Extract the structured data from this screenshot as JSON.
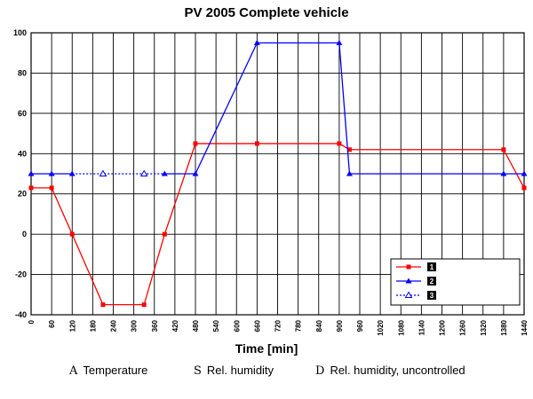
{
  "chart_data": {
    "type": "line",
    "title": "PV 2005 Complete vehicle",
    "xlabel": "Time [min]",
    "ylabel": "",
    "xlim": [
      0,
      1440
    ],
    "ylim": [
      -40,
      100
    ],
    "x_ticks": [
      0,
      60,
      120,
      180,
      240,
      300,
      360,
      420,
      480,
      540,
      600,
      660,
      720,
      780,
      840,
      900,
      960,
      1020,
      1080,
      1140,
      1200,
      1260,
      1320,
      1380,
      1440
    ],
    "y_ticks": [
      -40,
      -20,
      0,
      20,
      40,
      60,
      80,
      100
    ],
    "grid": true,
    "legend_position": "bottom-right",
    "series": [
      {
        "name": "1",
        "color": "#ff0000",
        "style": "solid",
        "marker": "square",
        "x": [
          0,
          60,
          120,
          210,
          330,
          390,
          480,
          660,
          900,
          930,
          1380,
          1440
        ],
        "y": [
          23,
          23,
          0,
          -35,
          -35,
          0,
          45,
          45,
          45,
          42,
          42,
          23
        ]
      },
      {
        "name": "2",
        "color": "#0000ff",
        "style": "solid",
        "marker": "triangle",
        "x": [
          0,
          60,
          120
        ],
        "y": [
          30,
          30,
          30
        ]
      },
      {
        "name": "",
        "color": "#0000ff",
        "style": "solid",
        "marker": "triangle",
        "x": [
          390,
          480,
          660,
          900,
          930,
          1380,
          1440
        ],
        "y": [
          30,
          30,
          95,
          95,
          30,
          30,
          30
        ]
      },
      {
        "name": "3",
        "color": "#0000ff",
        "style": "dotted",
        "marker": "open-triangle",
        "x": [
          120,
          210,
          330,
          390
        ],
        "y": [
          30,
          30,
          30,
          30
        ]
      }
    ],
    "legend_entries": [
      "1",
      "2",
      "3"
    ],
    "footer_legend": [
      {
        "letter": "A",
        "text": "Temperature"
      },
      {
        "letter": "S",
        "text": "Rel. humidity"
      },
      {
        "letter": "D",
        "text": "Rel. humidity, uncontrolled"
      }
    ]
  }
}
